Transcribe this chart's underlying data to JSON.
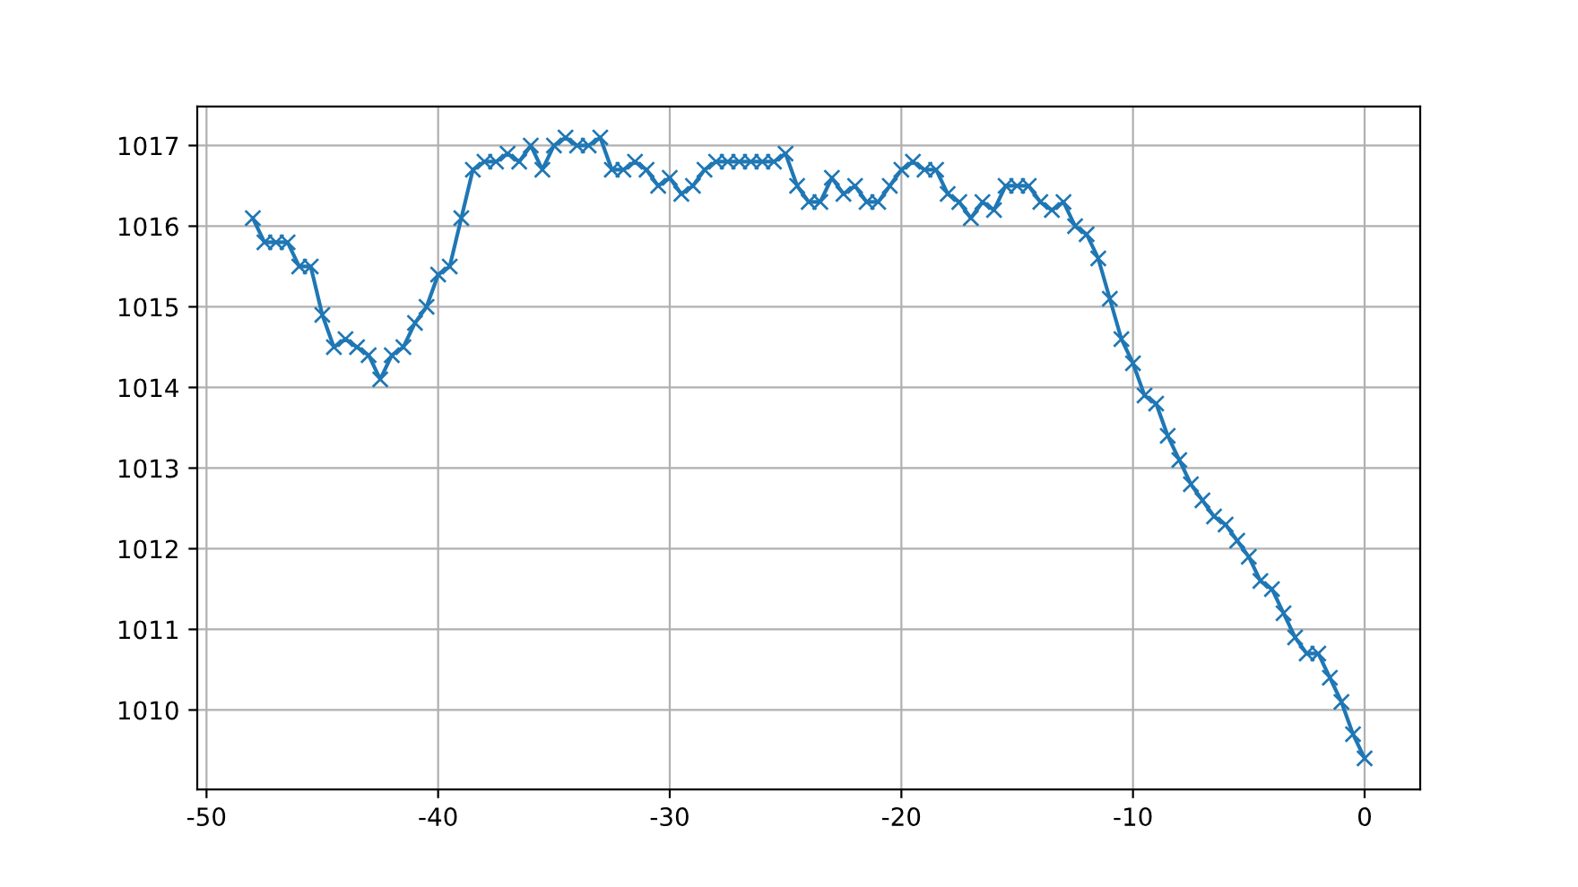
{
  "chart_data": {
    "type": "line",
    "x": [
      -48,
      -47.5,
      -47,
      -46.5,
      -46,
      -45.5,
      -45,
      -44.5,
      -44,
      -43.5,
      -43,
      -42.5,
      -42,
      -41.5,
      -41,
      -40.5,
      -40,
      -39.5,
      -39,
      -38.5,
      -38,
      -37.5,
      -37,
      -36.5,
      -36,
      -35.5,
      -35,
      -34.5,
      -34,
      -33.5,
      -33,
      -32.5,
      -32,
      -31.5,
      -31,
      -30.5,
      -30,
      -29.5,
      -29,
      -28.5,
      -28,
      -27.5,
      -27,
      -26.5,
      -26,
      -25.5,
      -25,
      -24.5,
      -24,
      -23.5,
      -23,
      -22.5,
      -22,
      -21.5,
      -21,
      -20.5,
      -20,
      -19.5,
      -19,
      -18.5,
      -18,
      -17.5,
      -17,
      -16.5,
      -16,
      -15.5,
      -15,
      -14.5,
      -14,
      -13.5,
      -13,
      -12.5,
      -12,
      -11.5,
      -11,
      -10.5,
      -10,
      -9.5,
      -9,
      -8.5,
      -8,
      -7.5,
      -7,
      -6.5,
      -6,
      -5.5,
      -5,
      -4.5,
      -4,
      -3.5,
      -3,
      -2.5,
      -2,
      -1.5,
      -1,
      -0.5,
      0
    ],
    "series": [
      {
        "color": "#1f77b4",
        "values": [
          1016.1,
          1015.8,
          1015.8,
          1015.8,
          1015.5,
          1015.5,
          1014.9,
          1014.5,
          1014.6,
          1014.5,
          1014.4,
          1014.1,
          1014.4,
          1014.5,
          1014.8,
          1015.0,
          1015.4,
          1015.5,
          1016.1,
          1016.7,
          1016.8,
          1016.8,
          1016.9,
          1016.8,
          1017.0,
          1016.7,
          1017.0,
          1017.1,
          1017.0,
          1017.0,
          1017.1,
          1016.7,
          1016.7,
          1016.8,
          1016.7,
          1016.5,
          1016.6,
          1016.4,
          1016.5,
          1016.7,
          1016.8,
          1016.8,
          1016.8,
          1016.8,
          1016.8,
          1016.8,
          1016.9,
          1016.5,
          1016.3,
          1016.3,
          1016.6,
          1016.4,
          1016.5,
          1016.3,
          1016.3,
          1016.5,
          1016.7,
          1016.8,
          1016.7,
          1016.7,
          1016.4,
          1016.3,
          1016.1,
          1016.3,
          1016.2,
          1016.5,
          1016.5,
          1016.5,
          1016.3,
          1016.2,
          1016.3,
          1016.0,
          1015.9,
          1015.6,
          1015.1,
          1014.6,
          1014.3,
          1013.9,
          1013.8,
          1013.4,
          1013.1,
          1012.8,
          1012.6,
          1012.4,
          1012.3,
          1012.1,
          1011.9,
          1011.6,
          1011.5,
          1011.2,
          1010.9,
          1010.7,
          1010.7,
          1010.4,
          1010.1,
          1009.7,
          1009.4
        ]
      }
    ],
    "xlim": [
      -50.4,
      2.4
    ],
    "xticks": [
      -50,
      -40,
      -30,
      -20,
      -10,
      0
    ],
    "ylim": [
      1009.015,
      1017.485
    ],
    "yticks": [
      1010,
      1011,
      1012,
      1013,
      1014,
      1015,
      1016,
      1017
    ],
    "grid": true,
    "marker": "cross",
    "line_style": "solid"
  }
}
